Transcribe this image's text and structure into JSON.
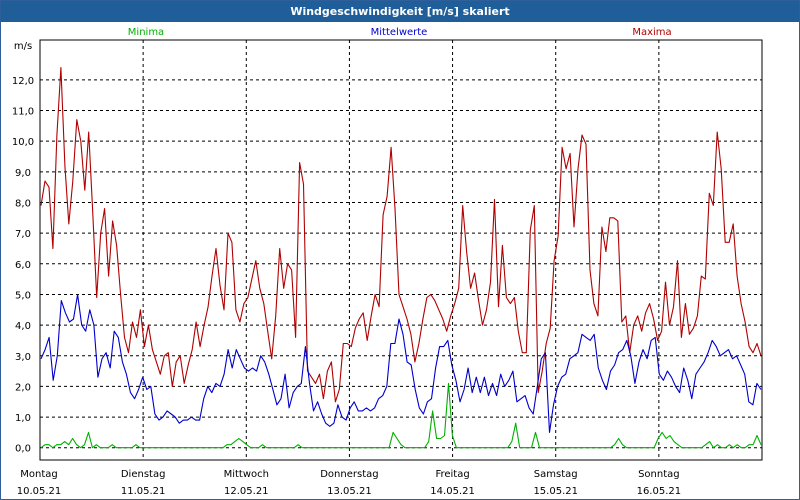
{
  "window": {
    "title": "Windgeschwindigkeit [m/s] skaliert"
  },
  "colors": {
    "minima": "#00b000",
    "mittelwerte": "#0000cc",
    "maxima": "#b00000"
  },
  "chart_data": {
    "type": "line",
    "title": "Windgeschwindigkeit [m/s] skaliert",
    "ylabel": "m/s",
    "ylim": [
      -0.4,
      13.3
    ],
    "yticks": [
      "0,0",
      "1,0",
      "2,0",
      "3,0",
      "4,0",
      "5,0",
      "6,0",
      "7,0",
      "8,0",
      "9,0",
      "10,0",
      "11,0",
      "12,0"
    ],
    "grid": true,
    "legend": [
      "Minima",
      "Mittelwerte",
      "Maxima"
    ],
    "xlim": [
      "2021-05-10",
      "2021-05-17"
    ],
    "x_ticks": [
      {
        "date": "2021-05-10",
        "day": "Montag",
        "label": "10.05.21"
      },
      {
        "date": "2021-05-11",
        "day": "Dienstag",
        "label": "11.05.21"
      },
      {
        "date": "2021-05-12",
        "day": "Mittwoch",
        "label": "12.05.21"
      },
      {
        "date": "2021-05-13",
        "day": "Donnerstag",
        "label": "13.05.21"
      },
      {
        "date": "2021-05-14",
        "day": "Freitag",
        "label": "14.05.21"
      },
      {
        "date": "2021-05-15",
        "day": "Samstag",
        "label": "15.05.21"
      },
      {
        "date": "2021-05-16",
        "day": "Sonntag",
        "label": "16.05.21"
      }
    ],
    "series": [
      {
        "name": "Maxima",
        "color": "#b00000",
        "values": [
          7.9,
          8.7,
          8.5,
          6.5,
          10.2,
          12.4,
          9.2,
          7.3,
          8.7,
          10.7,
          10.0,
          8.4,
          10.3,
          7.7,
          4.9,
          7.0,
          7.8,
          5.6,
          7.4,
          6.6,
          5.0,
          3.6,
          3.1,
          4.1,
          3.6,
          4.5,
          3.3,
          4.0,
          3.2,
          2.8,
          2.4,
          3.0,
          3.1,
          2.0,
          2.8,
          3.0,
          2.1,
          2.7,
          3.2,
          4.1,
          3.3,
          4.0,
          4.6,
          5.6,
          6.5,
          5.3,
          4.5,
          7.0,
          6.7,
          4.5,
          4.1,
          4.7,
          4.9,
          5.5,
          6.1,
          5.2,
          4.7,
          3.8,
          2.9,
          4.3,
          6.5,
          5.2,
          6.0,
          5.8,
          3.6,
          9.3,
          8.6,
          2.5,
          2.3,
          2.1,
          2.4,
          1.6,
          2.5,
          2.8,
          1.5,
          1.9,
          3.4,
          3.4,
          3.3,
          3.9,
          4.2,
          4.4,
          3.5,
          4.3,
          5.0,
          4.6,
          7.6,
          8.2,
          9.8,
          7.8,
          5.0,
          4.6,
          4.2,
          3.7,
          2.8,
          3.4,
          4.2,
          4.9,
          5.0,
          4.8,
          4.5,
          4.2,
          3.8,
          4.3,
          4.7,
          5.2,
          7.9,
          6.4,
          5.2,
          5.7,
          4.8,
          4.0,
          4.5,
          5.4,
          8.1,
          4.6,
          6.6,
          4.9,
          4.7,
          4.9,
          3.8,
          3.1,
          3.1,
          7.1,
          7.9,
          1.8,
          2.5,
          3.4,
          3.9,
          6.1,
          6.9,
          9.8,
          9.1,
          9.6,
          7.2,
          9.1,
          10.2,
          9.9,
          5.8,
          4.7,
          4.3,
          7.2,
          6.4,
          7.5,
          7.5,
          7.4,
          4.1,
          4.3,
          3.1,
          4.0,
          4.3,
          3.8,
          4.4,
          4.7,
          4.2,
          3.5,
          3.8,
          5.4,
          4.0,
          4.6,
          6.1,
          3.6,
          4.7,
          3.7,
          3.9,
          4.3,
          5.6,
          5.5,
          8.3,
          7.9,
          10.3,
          9.1,
          6.7,
          6.7,
          7.3,
          5.6,
          4.7,
          4.1,
          3.3,
          3.1,
          3.4,
          3.0
        ],
        "y_min": 1.5,
        "y_max": 12.4
      },
      {
        "name": "Mittelwerte",
        "color": "#0000cc",
        "values": [
          2.9,
          3.2,
          3.6,
          2.2,
          3.0,
          4.8,
          4.4,
          4.1,
          4.2,
          5.0,
          4.0,
          3.8,
          4.5,
          4.0,
          2.3,
          2.9,
          3.1,
          2.6,
          3.8,
          3.6,
          2.8,
          2.4,
          1.8,
          1.6,
          1.9,
          2.3,
          1.9,
          2.0,
          1.1,
          0.9,
          1.0,
          1.2,
          1.1,
          1.0,
          0.8,
          0.9,
          0.9,
          1.0,
          0.9,
          0.9,
          1.6,
          2.0,
          1.8,
          2.1,
          2.0,
          2.4,
          3.2,
          2.6,
          3.2,
          2.9,
          2.6,
          2.5,
          2.6,
          2.5,
          3.0,
          2.8,
          2.4,
          1.9,
          1.4,
          1.6,
          2.4,
          1.3,
          1.8,
          2.0,
          2.1,
          3.3,
          2.1,
          1.2,
          1.5,
          1.1,
          0.8,
          0.7,
          0.8,
          1.4,
          1.0,
          0.9,
          1.3,
          1.5,
          1.2,
          1.2,
          1.3,
          1.2,
          1.3,
          1.6,
          1.7,
          2.0,
          3.4,
          3.4,
          4.2,
          3.7,
          2.8,
          2.7,
          1.9,
          1.3,
          1.1,
          1.5,
          1.6,
          2.6,
          3.3,
          3.3,
          3.5,
          2.7,
          2.2,
          1.5,
          1.9,
          2.6,
          1.8,
          2.3,
          1.8,
          2.3,
          1.7,
          2.1,
          1.7,
          2.4,
          2.0,
          2.2,
          2.5,
          1.5,
          1.6,
          1.7,
          1.3,
          1.1,
          2.0,
          2.9,
          3.1,
          0.5,
          1.4,
          2.0,
          2.3,
          2.4,
          2.9,
          3.0,
          3.1,
          3.7,
          3.6,
          3.5,
          3.7,
          2.6,
          2.2,
          1.9,
          2.5,
          2.7,
          3.1,
          3.2,
          3.5,
          3.0,
          2.1,
          2.8,
          3.2,
          2.9,
          3.5,
          3.6,
          2.4,
          2.2,
          2.5,
          2.3,
          2.0,
          1.8,
          2.6,
          2.2,
          1.6,
          2.4,
          2.6,
          2.8,
          3.1,
          3.5,
          3.3,
          3.0,
          3.1,
          3.2,
          2.9,
          3.0,
          2.7,
          2.4,
          1.5,
          1.4,
          2.1,
          1.9
        ],
        "y_min": 0.5,
        "y_max": 5.0
      },
      {
        "name": "Minima",
        "color": "#00b000",
        "values": [
          0.0,
          0.1,
          0.1,
          0.0,
          0.1,
          0.1,
          0.2,
          0.1,
          0.3,
          0.1,
          0.0,
          0.1,
          0.5,
          0.0,
          0.1,
          0.0,
          0.0,
          0.0,
          0.1,
          0.0,
          0.0,
          0.0,
          0.0,
          0.0,
          0.1,
          0.0,
          0.0,
          0.0,
          0.0,
          0.0,
          0.0,
          0.0,
          0.0,
          0.0,
          0.0,
          0.0,
          0.0,
          0.0,
          0.0,
          0.0,
          0.0,
          0.0,
          0.0,
          0.0,
          0.0,
          0.0,
          0.0,
          0.1,
          0.1,
          0.2,
          0.3,
          0.2,
          0.1,
          0.0,
          0.0,
          0.0,
          0.1,
          0.0,
          0.0,
          0.0,
          0.0,
          0.0,
          0.0,
          0.0,
          0.0,
          0.1,
          0.0,
          0.0,
          0.0,
          0.0,
          0.0,
          0.0,
          0.0,
          0.0,
          0.0,
          0.0,
          0.0,
          0.0,
          0.0,
          0.0,
          0.0,
          0.0,
          0.0,
          0.0,
          0.0,
          0.0,
          0.0,
          0.0,
          0.0,
          0.5,
          0.3,
          0.1,
          0.0,
          0.0,
          0.0,
          0.0,
          0.0,
          0.0,
          0.2,
          1.2,
          0.3,
          0.3,
          0.4,
          2.1,
          0.4,
          0.0,
          0.0,
          0.0,
          0.0,
          0.0,
          0.0,
          0.0,
          0.0,
          0.0,
          0.0,
          0.0,
          0.0,
          0.0,
          0.0,
          0.2,
          0.8,
          0.0,
          0.0,
          0.0,
          0.0,
          0.5,
          0.0,
          0.0,
          0.0,
          0.0,
          0.0,
          0.0,
          0.0,
          0.0,
          0.0,
          0.0,
          0.0,
          0.0,
          0.0,
          0.0,
          0.0,
          0.0,
          0.0,
          0.0,
          0.0,
          0.1,
          0.3,
          0.1,
          0.0,
          0.0,
          0.0,
          0.0,
          0.0,
          0.0,
          0.0,
          0.0,
          0.3,
          0.5,
          0.3,
          0.4,
          0.2,
          0.1,
          0.0,
          0.0,
          0.0,
          0.0,
          0.0,
          0.0,
          0.1,
          0.2,
          0.0,
          0.1,
          0.0,
          0.0,
          0.1,
          0.0,
          0.1,
          0.0,
          0.0,
          0.1,
          0.1,
          0.4,
          0.1
        ],
        "y_min": 0.0,
        "y_max": 2.1
      }
    ]
  }
}
